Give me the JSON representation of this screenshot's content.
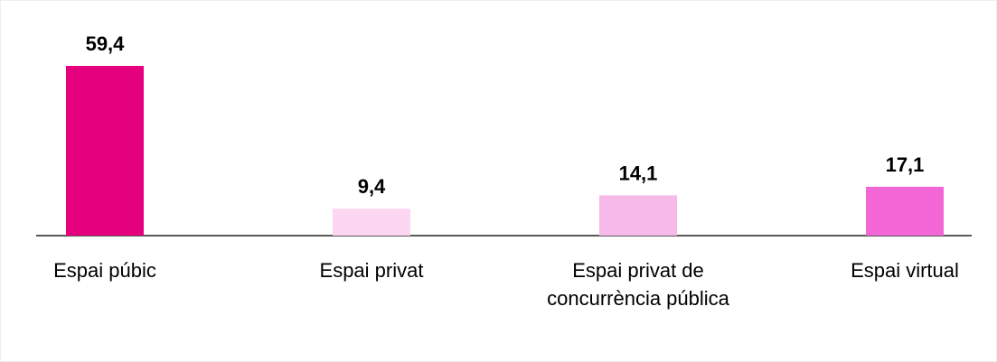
{
  "chart_data": {
    "type": "bar",
    "categories": [
      "Espai púbic",
      "Espai privat",
      "Espai privat de concurrència pública",
      "Espai virtual"
    ],
    "values": [
      59.4,
      9.4,
      14.1,
      17.1
    ],
    "value_labels": [
      "59,4",
      "9,4",
      "14,1",
      "17,1"
    ],
    "colors": [
      "#e5007d",
      "#fdd6f2",
      "#f7b9e7",
      "#f267d5"
    ]
  }
}
